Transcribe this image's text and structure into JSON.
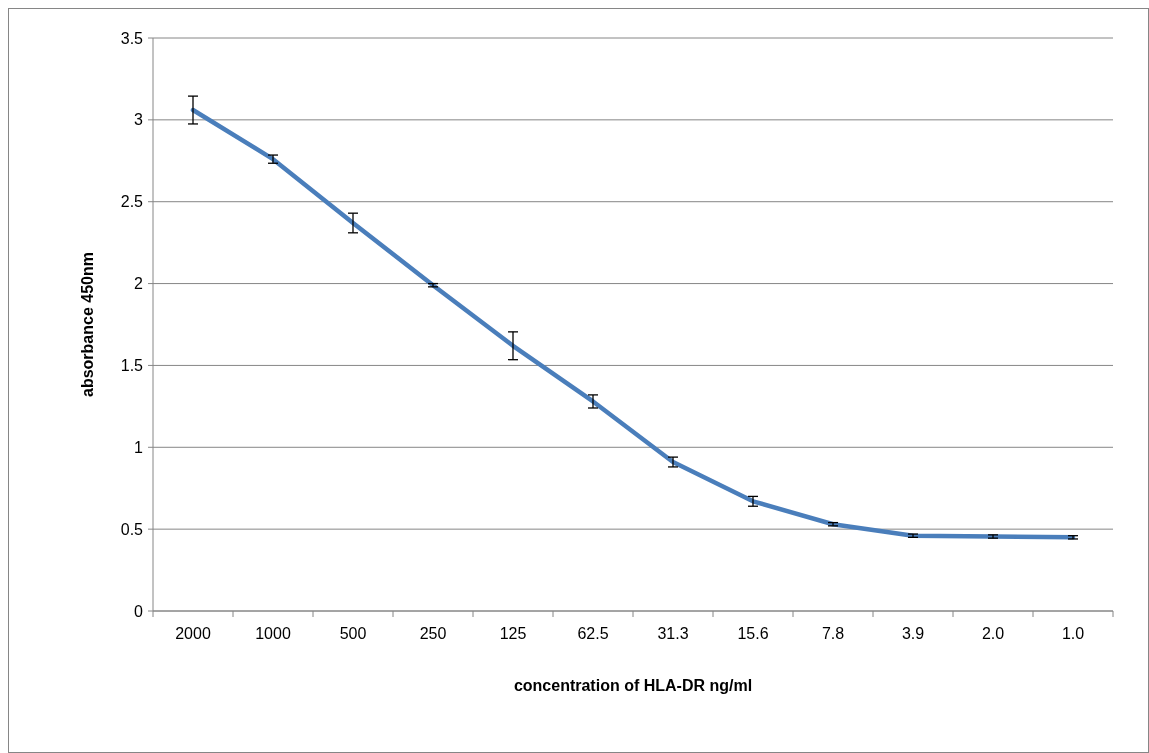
{
  "chart_data": {
    "type": "line",
    "xlabel": "concentration of HLA-DR ng/ml",
    "ylabel": "absorbance 450nm",
    "categories": [
      "2000",
      "1000",
      "500",
      "250",
      "125",
      "62.5",
      "31.3",
      "15.6",
      "7.8",
      "3.9",
      "2.0",
      "1.0"
    ],
    "series": [
      {
        "color": "#4a7ebb",
        "values": [
          3.06,
          2.76,
          2.37,
          1.99,
          1.62,
          1.28,
          0.91,
          0.67,
          0.53,
          0.46,
          0.455,
          0.45
        ],
        "errors": [
          0.085,
          0.025,
          0.06,
          0.01,
          0.085,
          0.04,
          0.03,
          0.03,
          0.01,
          0.01,
          0.01,
          0.01
        ]
      }
    ],
    "ylim": [
      0,
      3.5
    ],
    "yticks": [
      0,
      0.5,
      1,
      1.5,
      2,
      2.5,
      3,
      3.5
    ],
    "grid": "y",
    "marker": "none",
    "line_style": "solid"
  }
}
